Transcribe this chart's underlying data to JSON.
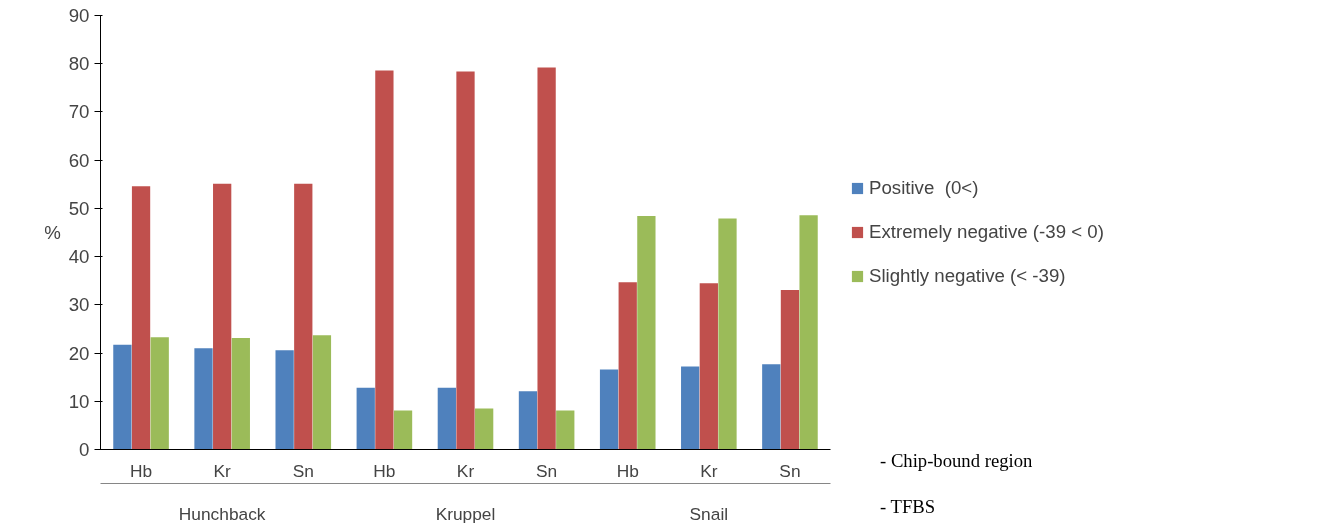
{
  "chart_data": {
    "type": "bar",
    "ylabel": "%",
    "categories": [
      "Hb",
      "Kr",
      "Sn",
      "Hb",
      "Kr",
      "Sn",
      "Hb",
      "Kr",
      "Sn"
    ],
    "series": [
      {
        "name": "Positive  (0<)",
        "color": "#4f81bd",
        "values": [
          21.7,
          21.0,
          20.6,
          12.8,
          12.8,
          12.1,
          16.6,
          17.2,
          17.7
        ]
      },
      {
        "name": "Extremely negative (-39 < 0)",
        "color": "#c0504d",
        "values": [
          54.6,
          55.1,
          55.1,
          78.6,
          78.4,
          79.2,
          34.7,
          34.5,
          33.1
        ]
      },
      {
        "name": "Slightly negative (< -39)",
        "color": "#9bbb59",
        "values": [
          23.3,
          23.1,
          23.7,
          8.1,
          8.5,
          8.1,
          48.4,
          47.9,
          48.6
        ]
      }
    ],
    "ylim": [
      0,
      90
    ],
    "yticks": [
      0,
      10,
      20,
      30,
      40,
      50,
      60,
      70,
      80,
      90
    ],
    "grid": false,
    "legend": "right",
    "annotations": [
      "Hunchback",
      "Kruppel",
      "Snail",
      "- Chip-bound region",
      "- TFBS"
    ]
  }
}
